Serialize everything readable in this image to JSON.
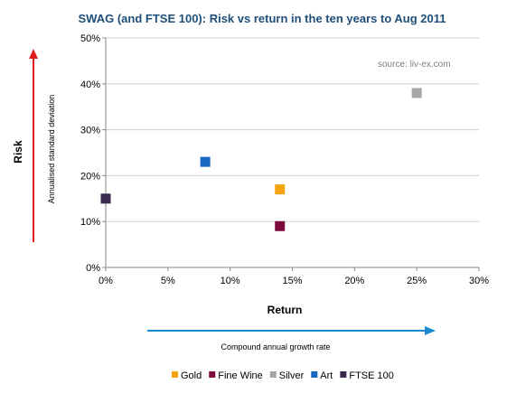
{
  "chart_data": {
    "type": "scatter",
    "title": "SWAG (and FTSE 100): Risk vs return in the ten years to Aug 2011",
    "source_note": "source: liv-ex.com",
    "xlabel": "Return",
    "x_sublabel": "Compound annual growth rate",
    "ylabel": "Risk",
    "y_sublabel": "Annualised standard deviation",
    "xlim": [
      0,
      30
    ],
    "ylim": [
      0,
      50
    ],
    "x_ticks": [
      "0%",
      "5%",
      "10%",
      "15%",
      "20%",
      "25%",
      "30%"
    ],
    "y_ticks": [
      "0%",
      "10%",
      "20%",
      "30%",
      "40%",
      "50%"
    ],
    "grid": "horizontal",
    "legend_position": "bottom",
    "series": [
      {
        "name": "Gold",
        "color": "#f5a40d",
        "points": [
          {
            "x": 14,
            "y": 17
          }
        ]
      },
      {
        "name": "Fine Wine",
        "color": "#7b0c3c",
        "points": [
          {
            "x": 14,
            "y": 9
          }
        ]
      },
      {
        "name": "Silver",
        "color": "#a6a6a6",
        "points": [
          {
            "x": 25,
            "y": 38
          }
        ]
      },
      {
        "name": "Art",
        "color": "#1567c2",
        "points": [
          {
            "x": 8,
            "y": 23
          }
        ]
      },
      {
        "name": "FTSE 100",
        "color": "#3a2a4f",
        "points": [
          {
            "x": 0,
            "y": 15
          }
        ]
      }
    ],
    "arrow_colors": {
      "risk": "#e01b1b",
      "return": "#1a8ad0"
    }
  }
}
